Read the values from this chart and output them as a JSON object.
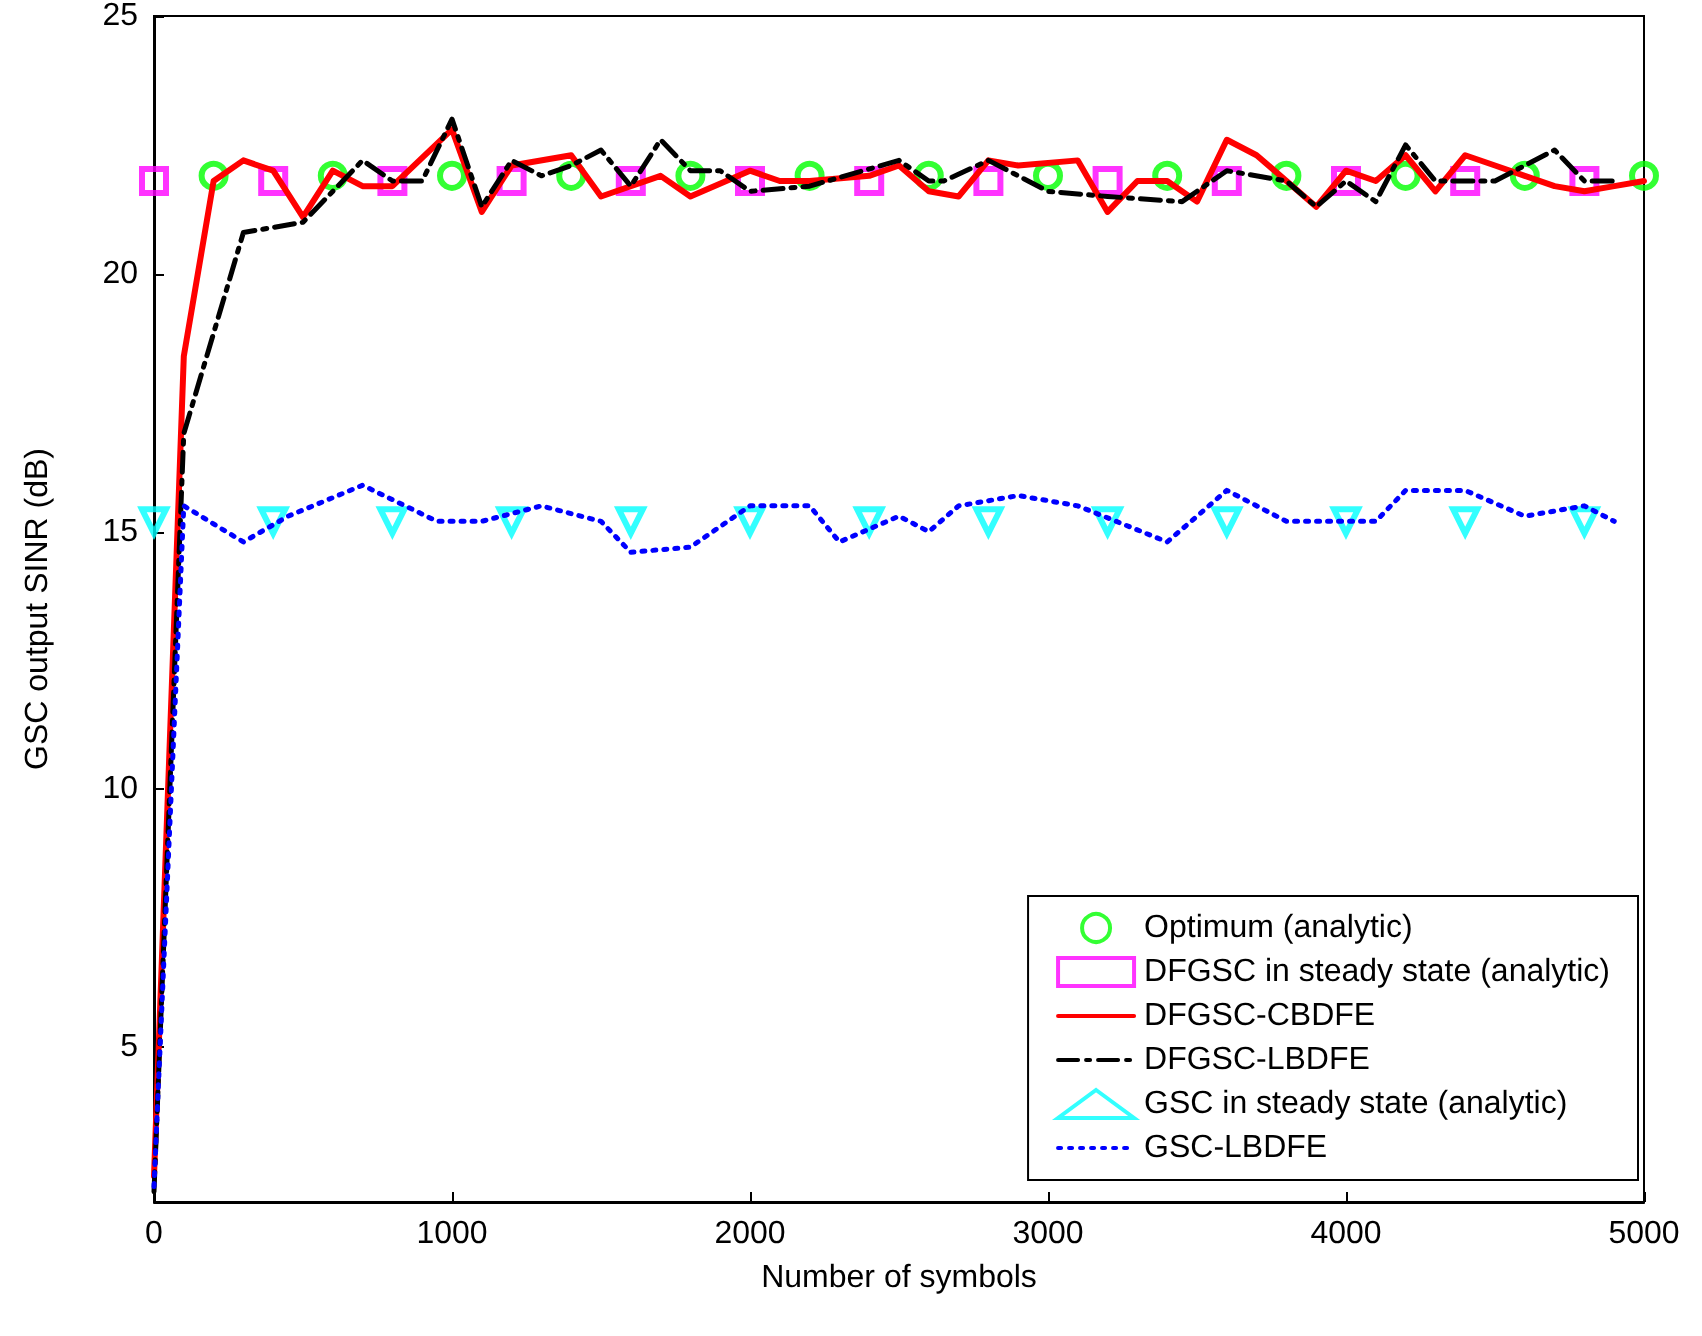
{
  "chart_data": {
    "type": "line",
    "xlabel": "Number of symbols",
    "ylabel": "GSC output SINR (dB)",
    "xlim": [
      0,
      5000
    ],
    "ylim": [
      2,
      25
    ],
    "xticks": [
      0,
      1000,
      2000,
      3000,
      4000,
      5000
    ],
    "yticks": [
      5,
      10,
      15,
      20,
      25
    ],
    "grid": false,
    "legend": "bottom right",
    "series": [
      {
        "name": "Optimum (analytic)",
        "type": "scatter",
        "marker": "circle",
        "color": "#00ff00",
        "x": [
          200,
          600,
          1000,
          1400,
          1800,
          2200,
          2600,
          3000,
          3400,
          3800,
          4200,
          4600,
          5000
        ],
        "values": [
          21.9,
          21.9,
          21.9,
          21.9,
          21.9,
          21.9,
          21.9,
          21.9,
          21.9,
          21.9,
          21.9,
          21.9,
          21.9
        ]
      },
      {
        "name": "DFGSC in steady state (analytic)",
        "type": "scatter",
        "marker": "square",
        "color": "#ff00ff",
        "x": [
          0,
          400,
          800,
          1200,
          1600,
          2000,
          2400,
          2800,
          3200,
          3600,
          4000,
          4400,
          4800
        ],
        "values": [
          21.8,
          21.8,
          21.8,
          21.8,
          21.8,
          21.8,
          21.8,
          21.8,
          21.8,
          21.8,
          21.8,
          21.8,
          21.8
        ]
      },
      {
        "name": "DFGSC-CBDFE",
        "type": "line",
        "marker": "none",
        "line_style": "solid",
        "color": "#ff0000",
        "x": [
          0,
          100,
          200,
          300,
          400,
          500,
          600,
          700,
          800,
          1000,
          1100,
          1200,
          1400,
          1500,
          1700,
          1800,
          2000,
          2100,
          2200,
          2400,
          2500,
          2600,
          2700,
          2800,
          2900,
          3100,
          3200,
          3300,
          3400,
          3500,
          3600,
          3700,
          3900,
          4000,
          4100,
          4200,
          4300,
          4400,
          4500,
          4600,
          4700,
          4800,
          4900,
          5000
        ],
        "values": [
          2.5,
          18.4,
          21.8,
          22.2,
          22.0,
          21.1,
          22.0,
          21.7,
          21.7,
          22.8,
          21.2,
          22.1,
          22.3,
          21.5,
          21.9,
          21.5,
          22.0,
          21.8,
          21.8,
          21.9,
          22.1,
          21.6,
          21.5,
          22.2,
          22.1,
          22.2,
          21.2,
          21.8,
          21.8,
          21.4,
          22.6,
          22.3,
          21.3,
          22.0,
          21.8,
          22.3,
          21.6,
          22.3,
          22.1,
          21.9,
          21.7,
          21.6,
          21.7,
          21.8
        ]
      },
      {
        "name": "DFGSC-LBDFE",
        "type": "line",
        "marker": "none",
        "line_style": "dashed",
        "color": "#000000",
        "x": [
          0,
          100,
          300,
          500,
          700,
          800,
          900,
          1000,
          1100,
          1200,
          1300,
          1400,
          1500,
          1600,
          1700,
          1800,
          1900,
          2000,
          2200,
          2500,
          2600,
          2650,
          2800,
          3000,
          3200,
          3450,
          3600,
          3800,
          3900,
          4000,
          4100,
          4200,
          4300,
          4500,
          4700,
          4800,
          4900
        ],
        "values": [
          2.2,
          16.9,
          20.8,
          21.0,
          22.2,
          21.8,
          21.8,
          23.0,
          21.3,
          22.2,
          21.9,
          22.1,
          22.4,
          21.7,
          22.6,
          22.0,
          22.0,
          21.6,
          21.7,
          22.2,
          21.8,
          21.8,
          22.2,
          21.6,
          21.5,
          21.4,
          22.0,
          21.8,
          21.3,
          21.8,
          21.4,
          22.5,
          21.8,
          21.8,
          22.4,
          21.8,
          21.8
        ]
      },
      {
        "name": "GSC in steady state (analytic)",
        "type": "scatter",
        "marker": "triangle",
        "color": "#00ffff",
        "x": [
          0,
          400,
          800,
          1200,
          1600,
          2000,
          2400,
          2800,
          3200,
          3600,
          4000,
          4400,
          4800
        ],
        "values": [
          15.2,
          15.2,
          15.2,
          15.2,
          15.2,
          15.2,
          15.2,
          15.2,
          15.2,
          15.2,
          15.2,
          15.2,
          15.2
        ]
      },
      {
        "name": "GSC-LBDFE",
        "type": "line",
        "marker": "none",
        "line_style": "dotted",
        "color": "#0000ff",
        "x": [
          0,
          100,
          300,
          450,
          700,
          950,
          1100,
          1300,
          1500,
          1600,
          1800,
          2000,
          2200,
          2300,
          2500,
          2600,
          2700,
          2900,
          3100,
          3400,
          3600,
          3800,
          4100,
          4200,
          4400,
          4600,
          4800,
          4900
        ],
        "values": [
          2.3,
          15.5,
          14.8,
          15.3,
          15.9,
          15.2,
          15.2,
          15.5,
          15.2,
          14.6,
          14.7,
          15.5,
          15.5,
          14.8,
          15.3,
          15.0,
          15.5,
          15.7,
          15.5,
          14.8,
          15.8,
          15.2,
          15.2,
          15.8,
          15.8,
          15.3,
          15.5,
          15.2
        ]
      }
    ]
  }
}
